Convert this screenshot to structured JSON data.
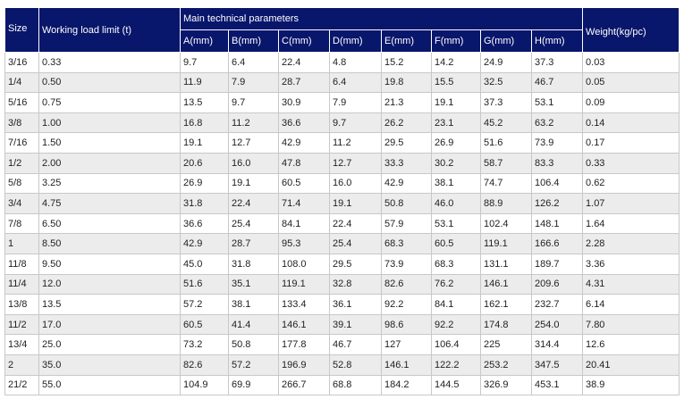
{
  "header": {
    "size": "Size",
    "working_load_limit": "Working load limit (t)",
    "main_parameters": "Main technical parameters",
    "weight": "Weight(kg/pc)",
    "params": [
      "A(mm)",
      "B(mm)",
      "C(mm)",
      "D(mm)",
      "E(mm)",
      "F(mm)",
      "G(mm)",
      "H(mm)"
    ]
  },
  "rows": [
    [
      "3/16",
      "0.33",
      "9.7",
      "6.4",
      "22.4",
      "4.8",
      "15.2",
      "14.2",
      "24.9",
      "37.3",
      "0.03"
    ],
    [
      "1/4",
      "0.50",
      "11.9",
      "7.9",
      "28.7",
      "6.4",
      "19.8",
      "15.5",
      "32.5",
      "46.7",
      "0.05"
    ],
    [
      "5/16",
      "0.75",
      "13.5",
      "9.7",
      "30.9",
      "7.9",
      "21.3",
      "19.1",
      "37.3",
      "53.1",
      "0.09"
    ],
    [
      "3/8",
      "1.00",
      "16.8",
      "11.2",
      "36.6",
      "9.7",
      "26.2",
      "23.1",
      "45.2",
      "63.2",
      "0.14"
    ],
    [
      "7/16",
      "1.50",
      "19.1",
      "12.7",
      "42.9",
      "11.2",
      "29.5",
      "26.9",
      "51.6",
      "73.9",
      "0.17"
    ],
    [
      "1/2",
      "2.00",
      "20.6",
      "16.0",
      "47.8",
      "12.7",
      "33.3",
      "30.2",
      "58.7",
      "83.3",
      "0.33"
    ],
    [
      "5/8",
      "3.25",
      "26.9",
      "19.1",
      "60.5",
      "16.0",
      "42.9",
      "38.1",
      "74.7",
      "106.4",
      "0.62"
    ],
    [
      "3/4",
      "4.75",
      "31.8",
      "22.4",
      "71.4",
      "19.1",
      "50.8",
      "46.0",
      "88.9",
      "126.2",
      "1.07"
    ],
    [
      "7/8",
      "6.50",
      "36.6",
      "25.4",
      "84.1",
      "22.4",
      "57.9",
      "53.1",
      "102.4",
      "148.1",
      "1.64"
    ],
    [
      "1",
      "8.50",
      "42.9",
      "28.7",
      "95.3",
      "25.4",
      "68.3",
      "60.5",
      "119.1",
      "166.6",
      "2.28"
    ],
    [
      "11/8",
      "9.50",
      "45.0",
      "31.8",
      "108.0",
      "29.5",
      "73.9",
      "68.3",
      "131.1",
      "189.7",
      "3.36"
    ],
    [
      "11/4",
      "12.0",
      "51.6",
      "35.1",
      "119.1",
      "32.8",
      "82.6",
      "76.2",
      "146.1",
      "209.6",
      "4.31"
    ],
    [
      "13/8",
      "13.5",
      "57.2",
      "38.1",
      "133.4",
      "36.1",
      "92.2",
      "84.1",
      "162.1",
      "232.7",
      "6.14"
    ],
    [
      "11/2",
      "17.0",
      "60.5",
      "41.4",
      "146.1",
      "39.1",
      "98.6",
      "92.2",
      "174.8",
      "254.0",
      "7.80"
    ],
    [
      "13/4",
      "25.0",
      "73.2",
      "50.8",
      "177.8",
      "46.7",
      "127",
      "106.4",
      "225",
      "314.4",
      "12.6"
    ],
    [
      "2",
      "35.0",
      "82.6",
      "57.2",
      "196.9",
      "52.8",
      "146.1",
      "122.2",
      "253.2",
      "347.5",
      "20.41"
    ],
    [
      "21/2",
      "55.0",
      "104.9",
      "69.9",
      "266.7",
      "68.8",
      "184.2",
      "144.5",
      "326.9",
      "453.1",
      "38.9"
    ]
  ]
}
